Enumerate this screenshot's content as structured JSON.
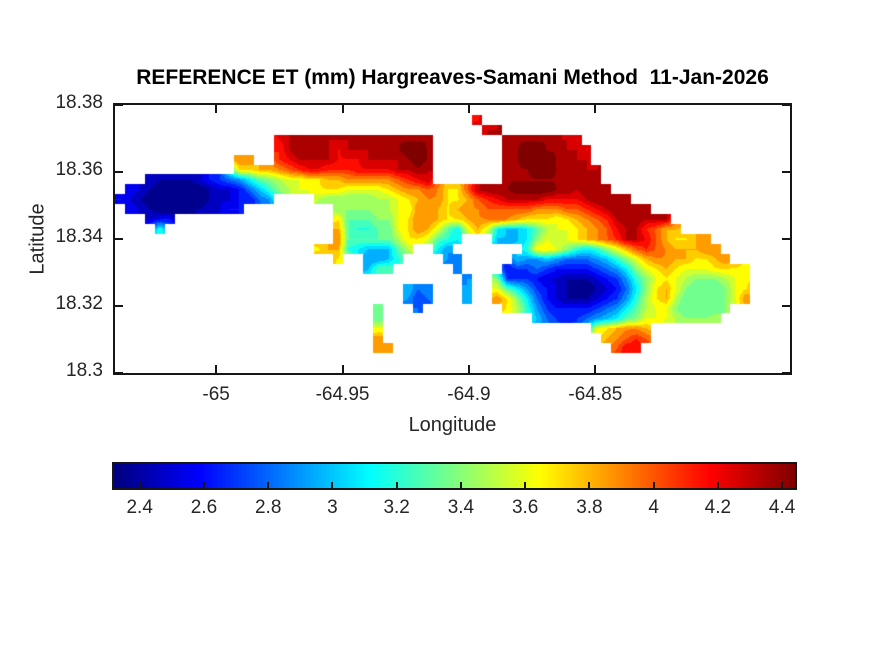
{
  "chart_data": {
    "type": "heatmap",
    "title": "REFERENCE ET (mm) Hargreaves-Samani Method  11-Jan-2026",
    "xlabel": "Longitude",
    "ylabel": "Latitude",
    "xlim": [
      -65.04,
      -64.773
    ],
    "ylim": [
      18.3,
      18.38
    ],
    "xticks": [
      -65,
      -64.95,
      -64.9,
      -64.85
    ],
    "xtick_labels": [
      "-65",
      "-64.95",
      "-64.9",
      "-64.85"
    ],
    "yticks": [
      18.38,
      18.36,
      18.34,
      18.32,
      18.3
    ],
    "ytick_labels": [
      "18.38",
      "18.36",
      "18.34",
      "18.32",
      "18.3"
    ],
    "units": "mm",
    "colormap": "jet",
    "clim": [
      2.32,
      4.44
    ],
    "contour_step": 0.1,
    "colorbar": {
      "orientation": "horizontal",
      "ticks": [
        2.4,
        2.6,
        2.8,
        3,
        3.2,
        3.4,
        3.6,
        3.8,
        4,
        4.2,
        4.4
      ],
      "tick_labels": [
        "2.4",
        "2.6",
        "2.8",
        "3",
        "3.2",
        "3.4",
        "3.6",
        "3.8",
        "4",
        "4.2",
        "4.4"
      ]
    },
    "grid_cols": 68,
    "grid_value_range": [
      2.3,
      4.5
    ],
    "grid_encoding": {
      "ocean": ".",
      "values": {
        "a": 2.3,
        "b": 2.4,
        "c": 2.5,
        "d": 2.6,
        "e": 2.7,
        "f": 2.8,
        "g": 2.9,
        "h": 3.0,
        "i": 3.1,
        "j": 3.2,
        "k": 3.3,
        "l": 3.4,
        "m": 3.5,
        "n": 3.6,
        "o": 3.7,
        "p": 3.8,
        "q": 3.9,
        "r": 4.0,
        "s": 4.1,
        "t": 4.2,
        "u": 4.3,
        "v": 4.4,
        "w": 4.5
      }
    },
    "grid_rows": [
      "....................................................................",
      "....................................t...............................",
      ".....................................uu.............................",
      "................tuvvvuuuuuuuvvvv.......uvvvvuut.....................",
      "................suvvvutuuuuuvwwv.......uvwwvvuut....................",
      "............qq..stuuuutttuuuuvwv.......uvwwwvuuu....................",
      "............ooppqrsttsssttttuuvu.......vvvwwvvuuu...................",
      "...cbbbbcdefgiklmnnooppqqqqqrstu.......vvvvvvuuuv...................",
      ".dcbaaaaabccdfhjlmnnooonnnnopqqrqooruvvvwwwwvvuvvv..................",
      "dcbaaaaaabccddfg....mlllllmmnopqqooprstuuuuttttuvvvv................",
      ".dcbaaabbccdd.........llllmmnnqqpopqqrrrrrqqqrrstuvvvu..............",
      "...cdd................okkkllnoqqpoopqqrqpooonopqrsuvvuuu............",
      "....j.................pkjjkknoqpnkinpnihhikmnnopqrtuusrpp...........",
      "......................qkkkkkmoonkji...hhhilnmnopqrsuutrpoopq........",
      "....................oppjihhhkm..ig.......joonljijlnprsrqpppqq.......",
      "......................o..gghj....gf.....hgghgfffghjlnpqqppoopq......",
      ".........................hkk......f....deefeddddefgilnoponnnoooo....",
      "...................................g..leeedccbbbcdegjlnonmlllmno....",
      ".............................hfg...g..nkigedcbaabcdfilopnlkkklno....",
      ".............................gef...h..qolifdcbbbcdegjmopmkkkklnq....",
      "..........................k...f........omjgeddddefgikmnnlkkkkl......",
      "..........................k...............hfeeefghiklnnnmlllm.......",
      "..........................n.....................nopqqp..............",
      "..........................q......................pqrsr..............",
      "..........................qq......................rtt...............",
      "....................................................................",
      "...................................................................."
    ]
  }
}
